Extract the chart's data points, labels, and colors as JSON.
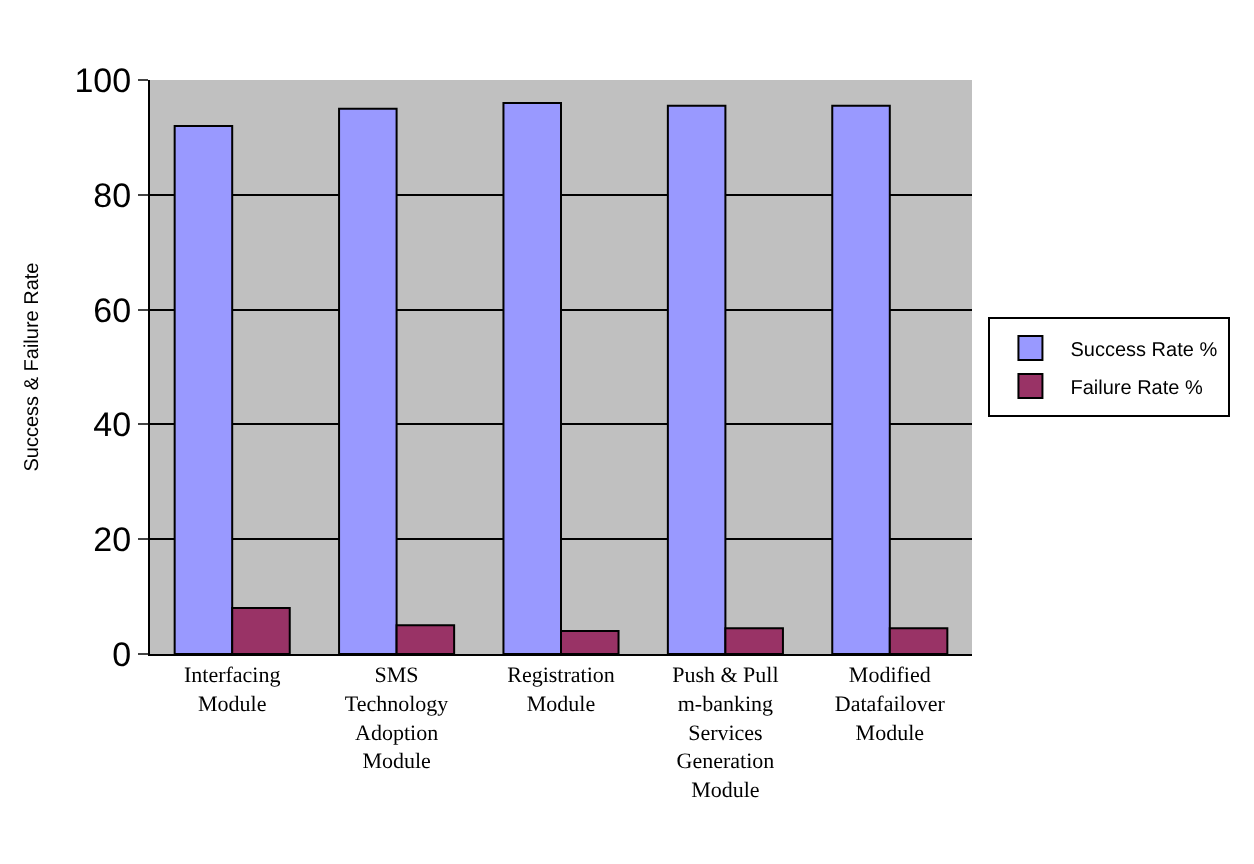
{
  "chart_data": {
    "type": "bar",
    "ylabel": "Success & Failure Rate",
    "categories": [
      "Interfacing\nModule",
      "SMS\nTechnology\nAdoption\nModule",
      "Registration\nModule",
      "Push & Pull\nm-banking\nServices\nGeneration\nModule",
      "Modified\nDatafailover\nModule"
    ],
    "series": [
      {
        "name": "Success Rate %",
        "color": "#9999ff",
        "values": [
          92,
          95,
          96,
          95.5,
          95.5
        ]
      },
      {
        "name": "Failure Rate %",
        "color": "#993366",
        "values": [
          8,
          5,
          4,
          4.5,
          4.5
        ]
      }
    ],
    "ylim": [
      0,
      100
    ],
    "yticks": [
      0,
      20,
      40,
      60,
      80,
      100
    ],
    "grid": "y",
    "legend": "right"
  }
}
